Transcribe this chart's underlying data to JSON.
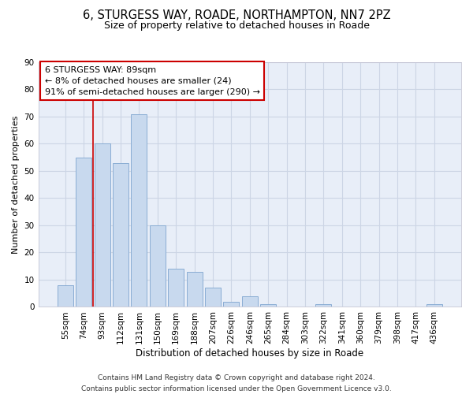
{
  "title1": "6, STURGESS WAY, ROADE, NORTHAMPTON, NN7 2PZ",
  "title2": "Size of property relative to detached houses in Roade",
  "xlabel": "Distribution of detached houses by size in Roade",
  "ylabel": "Number of detached properties",
  "categories": [
    "55sqm",
    "74sqm",
    "93sqm",
    "112sqm",
    "131sqm",
    "150sqm",
    "169sqm",
    "188sqm",
    "207sqm",
    "226sqm",
    "246sqm",
    "265sqm",
    "284sqm",
    "303sqm",
    "322sqm",
    "341sqm",
    "360sqm",
    "379sqm",
    "398sqm",
    "417sqm",
    "436sqm"
  ],
  "values": [
    8,
    55,
    60,
    53,
    71,
    30,
    14,
    13,
    7,
    2,
    4,
    1,
    0,
    0,
    1,
    0,
    0,
    0,
    0,
    0,
    1
  ],
  "bar_color": "#c8d9ee",
  "bar_edge_color": "#8aadd4",
  "red_line_x": 1.5,
  "annotation_title": "6 STURGESS WAY: 89sqm",
  "annotation_line1": "← 8% of detached houses are smaller (24)",
  "annotation_line2": "91% of semi-detached houses are larger (290) →",
  "annotation_box_color": "#ffffff",
  "annotation_box_edge": "#cc0000",
  "red_line_color": "#cc0000",
  "grid_color": "#ccd5e5",
  "bg_color": "#e8eef8",
  "ylim": [
    0,
    90
  ],
  "yticks": [
    0,
    10,
    20,
    30,
    40,
    50,
    60,
    70,
    80,
    90
  ],
  "footer1": "Contains HM Land Registry data © Crown copyright and database right 2024.",
  "footer2": "Contains public sector information licensed under the Open Government Licence v3.0.",
  "title1_fontsize": 10.5,
  "title2_fontsize": 9,
  "xlabel_fontsize": 8.5,
  "ylabel_fontsize": 8,
  "tick_fontsize": 7.5,
  "annotation_fontsize": 8,
  "footer_fontsize": 6.5
}
